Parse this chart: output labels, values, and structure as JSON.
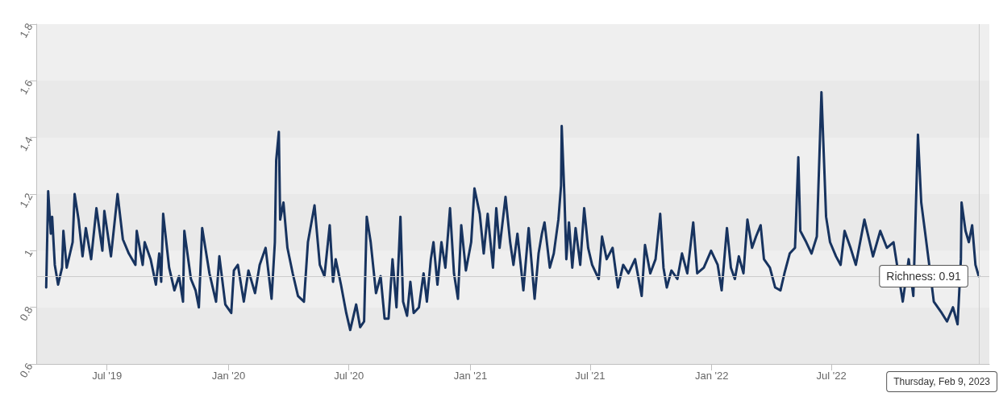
{
  "chart_data": {
    "type": "line",
    "x": [
      "2019-03-31",
      "2019-04-03",
      "2019-04-07",
      "2019-04-09",
      "2019-04-13",
      "2019-04-18",
      "2019-04-24",
      "2019-04-26",
      "2019-05-01",
      "2019-05-10",
      "2019-05-13",
      "2019-05-19",
      "2019-05-25",
      "2019-05-30",
      "2019-06-07",
      "2019-06-15",
      "2019-06-24",
      "2019-06-27",
      "2019-07-07",
      "2019-07-17",
      "2019-07-25",
      "2019-08-03",
      "2019-08-13",
      "2019-08-15",
      "2019-08-24",
      "2019-08-27",
      "2019-09-05",
      "2019-09-13",
      "2019-09-18",
      "2019-09-21",
      "2019-09-24",
      "2019-10-03",
      "2019-10-11",
      "2019-10-18",
      "2019-10-24",
      "2019-10-26",
      "2019-11-05",
      "2019-11-12",
      "2019-11-17",
      "2019-11-22",
      "2019-12-03",
      "2019-12-13",
      "2019-12-18",
      "2019-12-27",
      "2020-01-05",
      "2020-01-09",
      "2020-01-15",
      "2020-01-24",
      "2020-01-31",
      "2020-02-10",
      "2020-02-17",
      "2020-02-26",
      "2020-03-06",
      "2020-03-11",
      "2020-03-13",
      "2020-03-17",
      "2020-03-19",
      "2020-03-24",
      "2020-03-30",
      "2020-04-07",
      "2020-04-15",
      "2020-04-24",
      "2020-04-30",
      "2020-05-10",
      "2020-05-18",
      "2020-05-25",
      "2020-06-02",
      "2020-06-07",
      "2020-06-11",
      "2020-06-19",
      "2020-06-27",
      "2020-07-03",
      "2020-07-12",
      "2020-07-18",
      "2020-07-24",
      "2020-07-28",
      "2020-08-03",
      "2020-08-11",
      "2020-08-18",
      "2020-08-24",
      "2020-08-30",
      "2020-09-05",
      "2020-09-11",
      "2020-09-17",
      "2020-09-21",
      "2020-09-27",
      "2020-10-02",
      "2020-10-07",
      "2020-10-15",
      "2020-10-22",
      "2020-10-27",
      "2020-11-02",
      "2020-11-06",
      "2020-11-12",
      "2020-11-18",
      "2020-11-24",
      "2020-12-01",
      "2020-12-07",
      "2020-12-13",
      "2020-12-18",
      "2020-12-25",
      "2021-01-02",
      "2021-01-07",
      "2021-01-15",
      "2021-01-21",
      "2021-01-27",
      "2021-02-04",
      "2021-02-09",
      "2021-02-14",
      "2021-02-23",
      "2021-03-02",
      "2021-03-07",
      "2021-03-13",
      "2021-03-22",
      "2021-03-30",
      "2021-04-08",
      "2021-04-14",
      "2021-04-19",
      "2021-04-23",
      "2021-05-01",
      "2021-05-07",
      "2021-05-14",
      "2021-05-18",
      "2021-05-19",
      "2021-05-23",
      "2021-05-26",
      "2021-05-30",
      "2021-06-04",
      "2021-06-09",
      "2021-06-16",
      "2021-06-22",
      "2021-06-28",
      "2021-07-04",
      "2021-07-14",
      "2021-07-19",
      "2021-07-26",
      "2021-08-04",
      "2021-08-12",
      "2021-08-20",
      "2021-08-28",
      "2021-09-07",
      "2021-09-17",
      "2021-09-22",
      "2021-09-30",
      "2021-10-08",
      "2021-10-15",
      "2021-10-20",
      "2021-10-25",
      "2021-11-01",
      "2021-11-10",
      "2021-11-17",
      "2021-11-25",
      "2021-12-04",
      "2021-12-10",
      "2021-12-20",
      "2021-12-31",
      "2022-01-10",
      "2022-01-16",
      "2022-01-24",
      "2022-01-30",
      "2022-02-05",
      "2022-02-11",
      "2022-02-18",
      "2022-02-24",
      "2022-03-03",
      "2022-03-09",
      "2022-03-16",
      "2022-03-21",
      "2022-03-30",
      "2022-04-07",
      "2022-04-15",
      "2022-04-21",
      "2022-04-29",
      "2022-05-07",
      "2022-05-12",
      "2022-05-15",
      "2022-05-24",
      "2022-06-01",
      "2022-06-09",
      "2022-06-13",
      "2022-06-16",
      "2022-06-20",
      "2022-06-23",
      "2022-06-29",
      "2022-07-08",
      "2022-07-15",
      "2022-07-21",
      "2022-07-30",
      "2022-08-07",
      "2022-08-13",
      "2022-08-20",
      "2022-08-26",
      "2022-09-02",
      "2022-09-13",
      "2022-09-23",
      "2022-10-03",
      "2022-10-09",
      "2022-10-17",
      "2022-10-26",
      "2022-11-02",
      "2022-11-09",
      "2022-11-14",
      "2022-11-19",
      "2022-11-25",
      "2022-12-03",
      "2022-12-09",
      "2022-12-15",
      "2022-12-23",
      "2023-01-01",
      "2023-01-08",
      "2023-01-13",
      "2023-01-14",
      "2023-01-20",
      "2023-01-25",
      "2023-01-30",
      "2023-02-04",
      "2023-02-09"
    ],
    "series": [
      {
        "color": "#17335f",
        "values": [
          0.87,
          1.21,
          1.06,
          1.12,
          0.95,
          0.88,
          0.94,
          1.07,
          0.94,
          1.03,
          1.2,
          1.11,
          0.98,
          1.08,
          0.97,
          1.15,
          1.0,
          1.14,
          0.98,
          1.2,
          1.04,
          0.99,
          0.95,
          1.07,
          0.95,
          1.03,
          0.97,
          0.88,
          0.99,
          0.89,
          1.13,
          0.94,
          0.86,
          0.91,
          0.82,
          1.07,
          0.9,
          0.86,
          0.8,
          1.08,
          0.92,
          0.82,
          0.98,
          0.81,
          0.78,
          0.93,
          0.95,
          0.82,
          0.93,
          0.85,
          0.95,
          1.01,
          0.83,
          1.03,
          1.32,
          1.42,
          1.11,
          1.17,
          1.01,
          0.92,
          0.84,
          0.82,
          1.03,
          1.16,
          0.95,
          0.91,
          1.09,
          0.89,
          0.97,
          0.88,
          0.78,
          0.72,
          0.81,
          0.73,
          0.75,
          1.12,
          1.03,
          0.85,
          0.91,
          0.76,
          0.76,
          0.97,
          0.8,
          1.12,
          0.82,
          0.77,
          0.89,
          0.78,
          0.8,
          0.92,
          0.82,
          0.97,
          1.03,
          0.88,
          1.03,
          0.94,
          1.15,
          0.92,
          0.83,
          1.09,
          0.93,
          1.03,
          1.22,
          1.13,
          0.99,
          1.13,
          0.94,
          1.15,
          1.01,
          1.19,
          1.03,
          0.95,
          1.06,
          0.86,
          1.08,
          0.83,
          0.99,
          1.06,
          1.1,
          0.94,
          0.99,
          1.11,
          1.23,
          1.44,
          1.2,
          0.97,
          1.1,
          0.94,
          1.08,
          0.95,
          1.15,
          1.01,
          0.95,
          0.9,
          1.05,
          0.97,
          1.01,
          0.87,
          0.95,
          0.92,
          0.97,
          0.84,
          1.02,
          0.92,
          0.97,
          1.13,
          0.94,
          0.87,
          0.93,
          0.9,
          0.99,
          0.92,
          1.1,
          0.92,
          0.94,
          1.0,
          0.95,
          0.86,
          1.08,
          0.94,
          0.9,
          0.98,
          0.92,
          1.11,
          1.01,
          1.05,
          1.09,
          0.97,
          0.94,
          0.87,
          0.86,
          0.92,
          0.99,
          1.01,
          1.33,
          1.07,
          1.03,
          0.99,
          1.05,
          1.34,
          1.56,
          1.31,
          1.12,
          1.03,
          0.98,
          0.95,
          1.07,
          1.01,
          0.95,
          null,
          1.11,
          null,
          0.98,
          1.07,
          1.01,
          1.03,
          null,
          0.82,
          0.97,
          0.84,
          1.41,
          1.17,
          1.08,
          0.97,
          0.82,
          null,
          0.78,
          0.75,
          0.8,
          0.74,
          0.97,
          1.17,
          1.07,
          1.03,
          1.09,
          0.95,
          0.91
        ]
      }
    ],
    "xlim": [
      "2019-03-16",
      "2023-02-25"
    ],
    "xticks": [
      {
        "value": "2019-07-01",
        "label": "Jul '19"
      },
      {
        "value": "2020-01-01",
        "label": "Jan '20"
      },
      {
        "value": "2020-07-01",
        "label": "Jul '20"
      },
      {
        "value": "2021-01-01",
        "label": "Jan '21"
      },
      {
        "value": "2021-07-01",
        "label": "Jul '21"
      },
      {
        "value": "2022-01-01",
        "label": "Jan '22"
      },
      {
        "value": "2022-07-01",
        "label": "Jul '22"
      }
    ],
    "ylim": [
      0.6,
      1.8
    ],
    "yticks": [
      0.6,
      0.8,
      1,
      1.2,
      1.4,
      1.6,
      1.8
    ],
    "marker": "none",
    "line_style": "solid",
    "ref_lines": [
      {
        "axis": "y",
        "value": 0.91,
        "color": "#cccccc"
      },
      {
        "axis": "x",
        "value": "2023-02-09",
        "color": "#cccccc"
      }
    ],
    "annotations": [
      {
        "text": "Richness: 0.91",
        "x": "2023-02-09",
        "y": 0.91
      },
      "Thursday, Feb 9, 2023"
    ]
  }
}
